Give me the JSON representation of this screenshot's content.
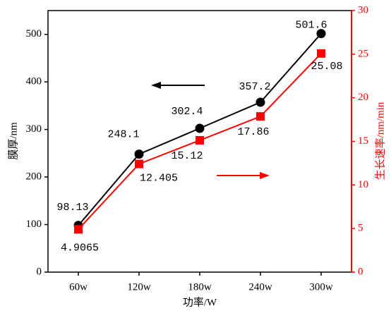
{
  "chart_data": {
    "type": "line",
    "categories": [
      "60w",
      "120w",
      "180w",
      "240w",
      "300w"
    ],
    "x_label": "功率/W",
    "y_label": "膜厚/nm",
    "y2_label": "生长速率/nm/min",
    "series": [
      {
        "name": "膜厚",
        "color": "#000000",
        "values": [
          98.13,
          248.1,
          302.4,
          357.2,
          501.6
        ]
      },
      {
        "name": "生长速率",
        "color": "#ff0000",
        "axis": "y2",
        "values": [
          4.9065,
          12.405,
          15.12,
          17.86,
          25.08
        ]
      }
    ],
    "ylim": [
      0,
      550
    ],
    "yticks": [
      0,
      100,
      200,
      300,
      400,
      500
    ],
    "y2lim": [
      0,
      30
    ],
    "y2ticks": [
      0,
      5,
      10,
      15,
      20,
      25,
      30
    ]
  }
}
